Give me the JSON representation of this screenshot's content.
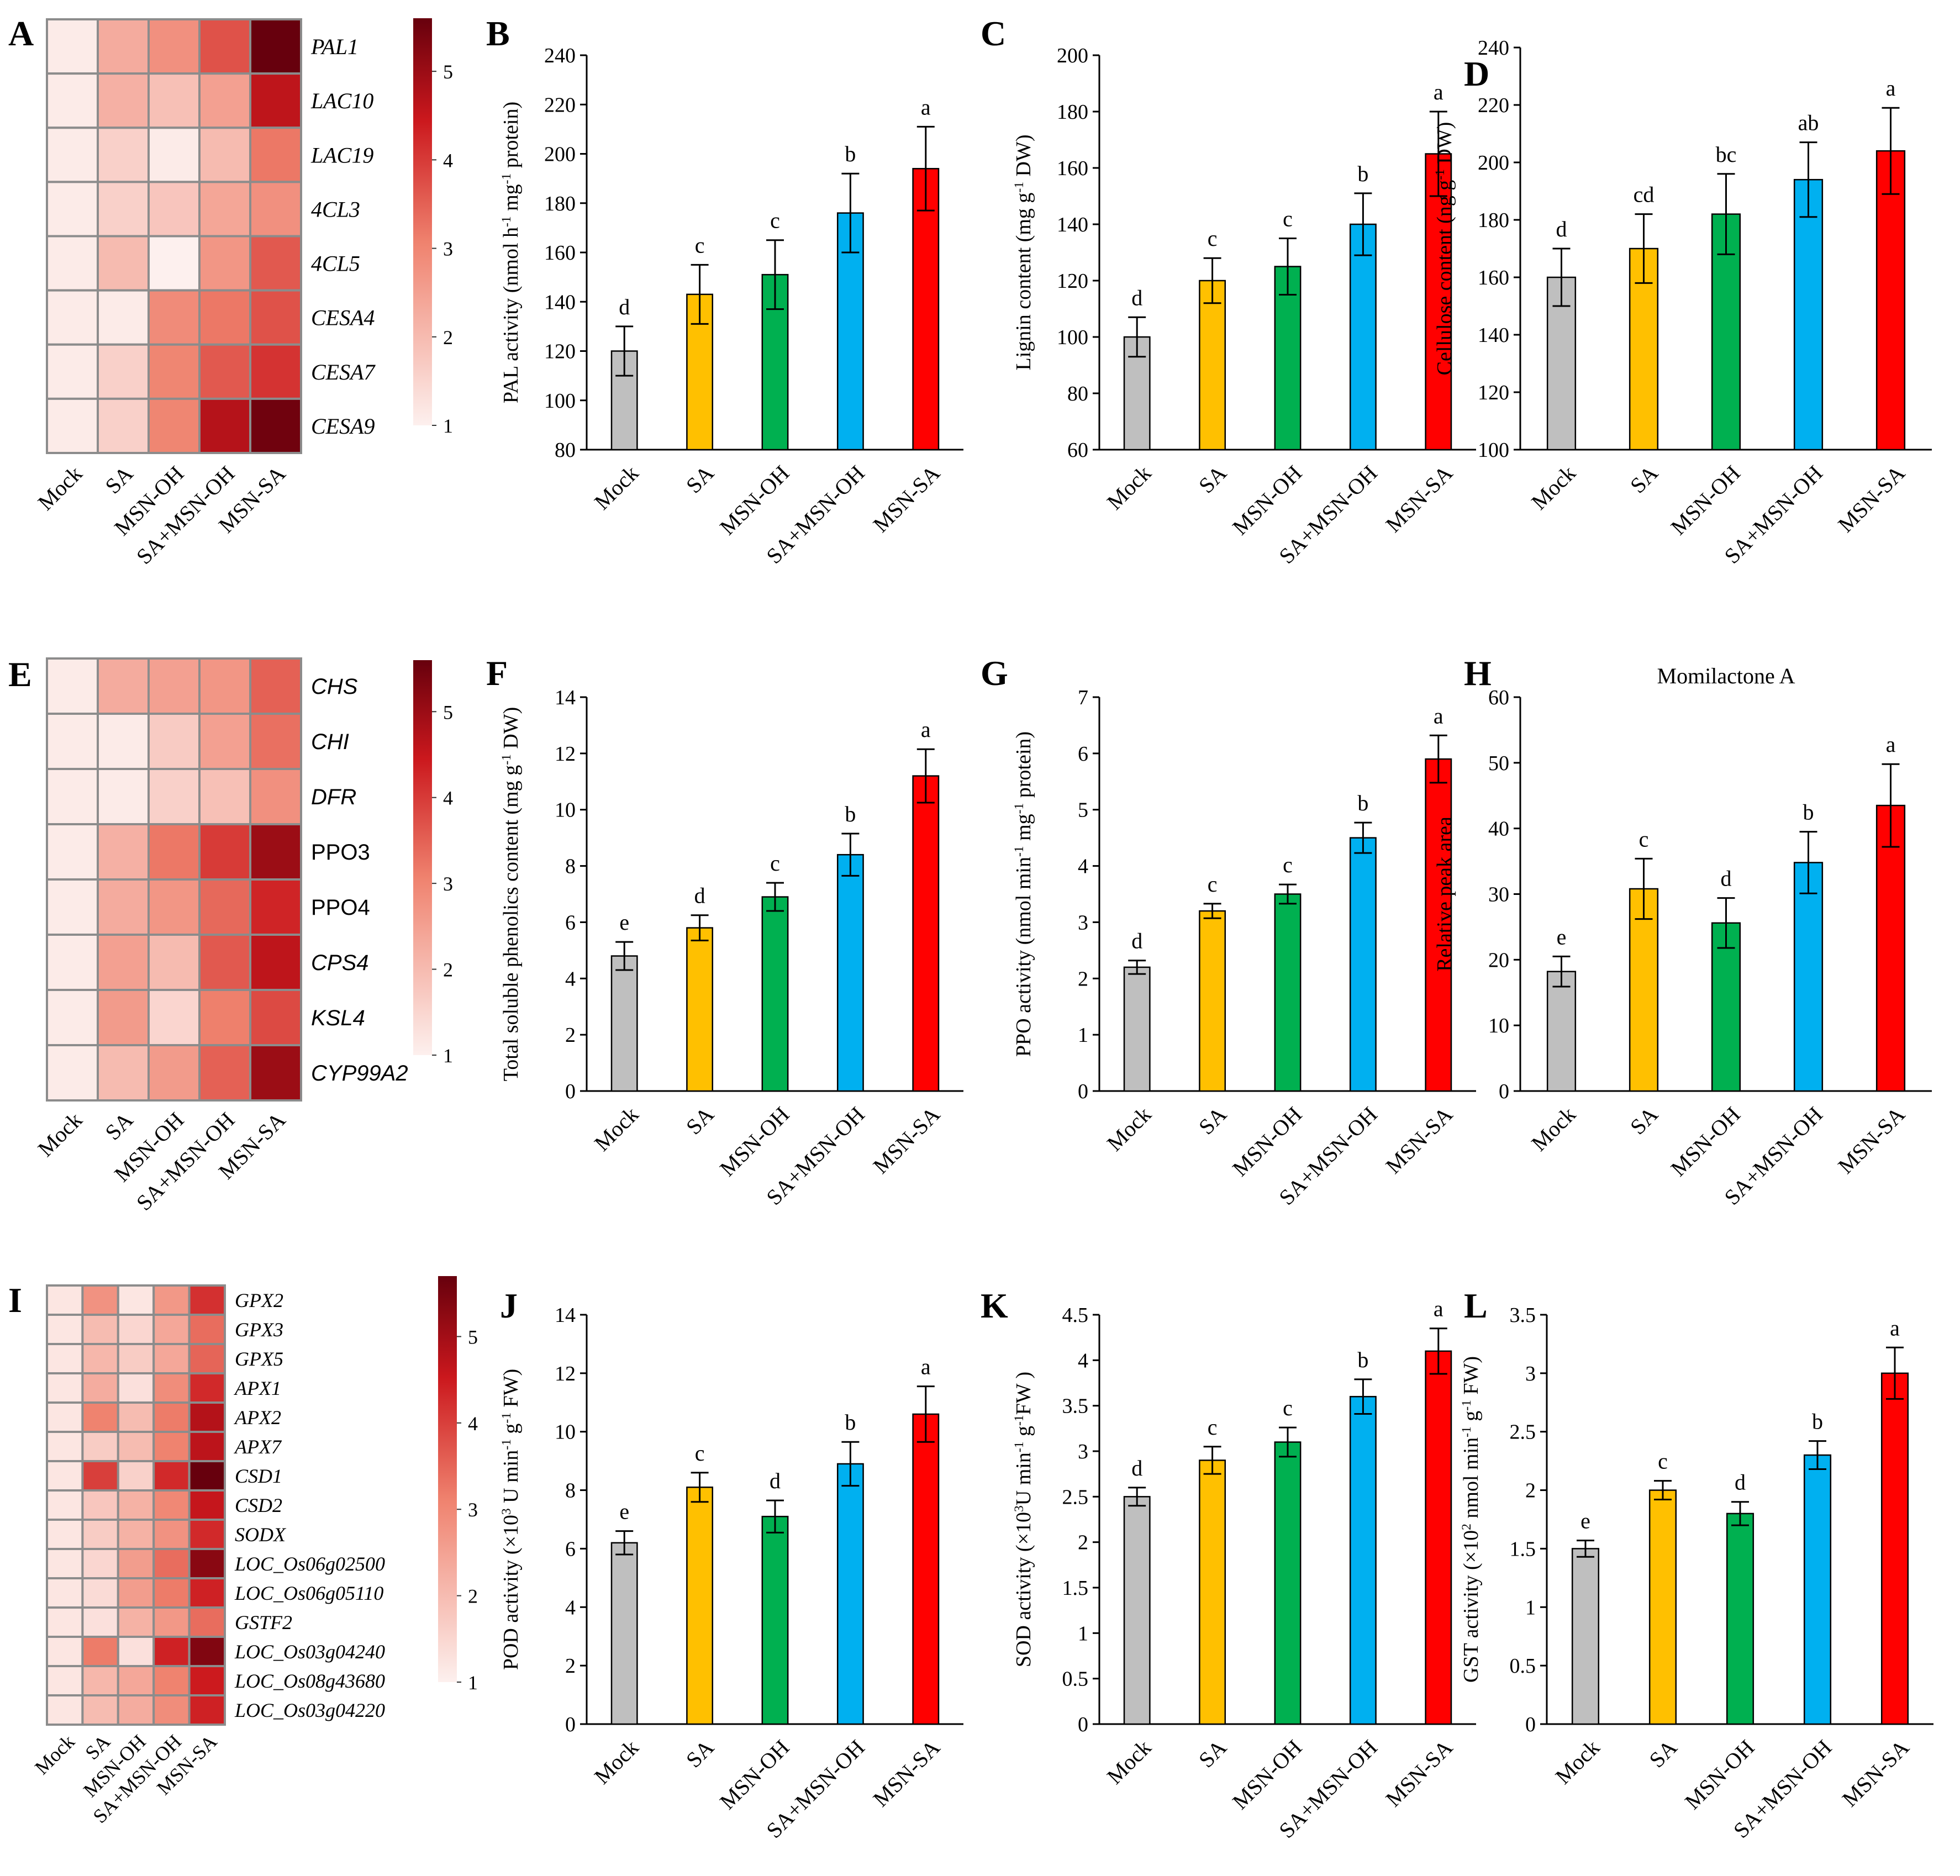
{
  "category_colors": {
    "Mock": "#bfbfbf",
    "SA": "#ffc000",
    "MSN-OH": "#00b050",
    "SA+MSN-OH": "#00b0f0",
    "MSN-SA": "#ff0000"
  },
  "heatmap_colors": {
    "low": "#fdf0ee",
    "high": "#67000d"
  },
  "chart_data": [
    {
      "panel": "A",
      "type": "heatmap",
      "columns": [
        "Mock",
        "SA",
        "MSN-OH",
        "SA+MSN-OH",
        "MSN-SA"
      ],
      "rows": [
        "PAL1",
        "LAC10",
        "LAC19",
        "4CL3",
        "4CL5",
        "CESA4",
        "CESA7",
        "CESA9"
      ],
      "row_italic": [
        true,
        true,
        true,
        true,
        true,
        true,
        true,
        true
      ],
      "values": [
        [
          1.1,
          2.3,
          2.8,
          3.7,
          5.6
        ],
        [
          1.1,
          2.2,
          1.9,
          2.5,
          4.6
        ],
        [
          1.1,
          1.6,
          1.1,
          2.0,
          3.2
        ],
        [
          1.1,
          1.6,
          1.8,
          2.4,
          2.8
        ],
        [
          1.1,
          2.0,
          1.0,
          2.7,
          3.6
        ],
        [
          1.1,
          1.1,
          2.9,
          3.2,
          3.7
        ],
        [
          1.1,
          1.6,
          3.0,
          3.6,
          4.1
        ],
        [
          1.1,
          1.6,
          3.0,
          4.7,
          5.5
        ]
      ],
      "colorbar": {
        "range": [
          1,
          5.6
        ],
        "ticks": [
          "1",
          "2",
          "3",
          "4",
          "5"
        ]
      }
    },
    {
      "panel": "B",
      "type": "bar",
      "categories": [
        "Mock",
        "SA",
        "MSN-OH",
        "SA+MSN-OH",
        "MSN-SA"
      ],
      "values": [
        120,
        143,
        151,
        176,
        194
      ],
      "errors": [
        10,
        12,
        14,
        16,
        17
      ],
      "letters": [
        "d",
        "c",
        "c",
        "b",
        "a"
      ],
      "ylim": [
        80,
        240
      ],
      "yticks": [
        "80",
        "100",
        "120",
        "140",
        "160",
        "180",
        "200",
        "220",
        "240"
      ],
      "ylabel_parts": [
        {
          "t": "PAL activity (nmol h"
        },
        {
          "t": "-1",
          "sup": true
        },
        {
          "t": " mg"
        },
        {
          "t": "-1",
          "sup": true
        },
        {
          "t": " protein)"
        }
      ],
      "title": ""
    },
    {
      "panel": "C",
      "type": "bar",
      "categories": [
        "Mock",
        "SA",
        "MSN-OH",
        "SA+MSN-OH",
        "MSN-SA"
      ],
      "values": [
        100,
        120,
        125,
        140,
        165
      ],
      "errors": [
        7,
        8,
        10,
        11,
        15
      ],
      "letters": [
        "d",
        "c",
        "c",
        "b",
        "a"
      ],
      "ylim": [
        60,
        200
      ],
      "yticks": [
        "60",
        "80",
        "100",
        "120",
        "140",
        "160",
        "180",
        "200"
      ],
      "ylabel_parts": [
        {
          "t": "Lignin content  (mg g"
        },
        {
          "t": "-1",
          "sup": true
        },
        {
          "t": " DW)"
        }
      ],
      "title": ""
    },
    {
      "panel": "D",
      "type": "bar",
      "categories": [
        "Mock",
        "SA",
        "MSN-OH",
        "SA+MSN-OH",
        "MSN-SA"
      ],
      "values": [
        160,
        170,
        182,
        194,
        204
      ],
      "errors": [
        10,
        12,
        14,
        13,
        15
      ],
      "letters": [
        "d",
        "cd",
        "bc",
        "ab",
        "a"
      ],
      "ylim": [
        100,
        240
      ],
      "yticks": [
        "100",
        "120",
        "140",
        "160",
        "180",
        "200",
        "220",
        "240"
      ],
      "ylabel_parts": [
        {
          "t": "Cellulose content (ng g"
        },
        {
          "t": "-1",
          "sup": true
        },
        {
          "t": " DW)"
        }
      ],
      "title": ""
    },
    {
      "panel": "E",
      "type": "heatmap",
      "columns": [
        "Mock",
        "SA",
        "MSN-OH",
        "SA+MSN-OH",
        "MSN-SA"
      ],
      "rows": [
        "CHS",
        "CHI",
        "DFR",
        "PPO3",
        "PPO4",
        "CPS4",
        "KSL4",
        "CYP99A2"
      ],
      "row_italic": [
        true,
        true,
        true,
        false,
        false,
        true,
        true,
        true
      ],
      "values": [
        [
          1.1,
          2.3,
          2.5,
          2.7,
          3.5
        ],
        [
          1.1,
          1.1,
          1.7,
          2.5,
          3.3
        ],
        [
          1.1,
          1.1,
          1.6,
          1.9,
          2.8
        ],
        [
          1.1,
          2.2,
          3.2,
          4.0,
          5.0
        ],
        [
          1.1,
          2.3,
          2.7,
          3.4,
          4.3
        ],
        [
          1.1,
          2.5,
          2.0,
          3.6,
          4.6
        ],
        [
          1.1,
          2.6,
          1.5,
          3.1,
          3.8
        ],
        [
          1.1,
          2.0,
          2.6,
          3.5,
          5.0
        ]
      ],
      "colorbar": {
        "range": [
          1,
          5.6
        ],
        "ticks": [
          "1",
          "2",
          "3",
          "4",
          "5"
        ]
      }
    },
    {
      "panel": "F",
      "type": "bar",
      "categories": [
        "Mock",
        "SA",
        "MSN-OH",
        "SA+MSN-OH",
        "MSN-SA"
      ],
      "values": [
        4.8,
        5.8,
        6.9,
        8.4,
        11.2
      ],
      "errors": [
        0.5,
        0.45,
        0.5,
        0.75,
        0.95
      ],
      "letters": [
        "e",
        "d",
        "c",
        "b",
        "a"
      ],
      "ylim": [
        0,
        14
      ],
      "yticks": [
        "0",
        "2",
        "4",
        "6",
        "8",
        "10",
        "12",
        "14"
      ],
      "ylabel_parts": [
        {
          "t": "Total soluble phenolics content (mg g"
        },
        {
          "t": "-1",
          "sup": true
        },
        {
          "t": " DW)"
        }
      ],
      "title": ""
    },
    {
      "panel": "G",
      "type": "bar",
      "categories": [
        "Mock",
        "SA",
        "MSN-OH",
        "SA+MSN-OH",
        "MSN-SA"
      ],
      "values": [
        2.2,
        3.2,
        3.5,
        4.5,
        5.9
      ],
      "errors": [
        0.12,
        0.13,
        0.17,
        0.27,
        0.42
      ],
      "letters": [
        "d",
        "c",
        "c",
        "b",
        "a"
      ],
      "ylim": [
        0,
        7
      ],
      "yticks": [
        "0",
        "1",
        "2",
        "3",
        "4",
        "5",
        "6",
        "7"
      ],
      "ylabel_parts": [
        {
          "t": "PPO activity (nmol  min"
        },
        {
          "t": "-1",
          "sup": true
        },
        {
          "t": " mg"
        },
        {
          "t": "-1",
          "sup": true
        },
        {
          "t": " protein)"
        }
      ],
      "title": ""
    },
    {
      "panel": "H",
      "type": "bar",
      "categories": [
        "Mock",
        "SA",
        "MSN-OH",
        "SA+MSN-OH",
        "MSN-SA"
      ],
      "values": [
        18.2,
        30.8,
        25.6,
        34.8,
        43.5
      ],
      "errors": [
        2.3,
        4.6,
        3.8,
        4.7,
        6.3
      ],
      "letters": [
        "e",
        "c",
        "d",
        "b",
        "a"
      ],
      "ylim": [
        0,
        60
      ],
      "yticks": [
        "0",
        "10",
        "20",
        "30",
        "40",
        "50",
        "60"
      ],
      "ylabel_parts": [
        {
          "t": "Relative peak area"
        }
      ],
      "title": "Momilactone A"
    },
    {
      "panel": "I",
      "type": "heatmap",
      "columns": [
        "Mock",
        "SA",
        "MSN-OH",
        "SA+MSN-OH",
        "MSN-SA"
      ],
      "rows": [
        "GPX2",
        "GPX3",
        "GPX5",
        "APX1",
        "APX2",
        "APX7",
        "CSD1",
        "CSD2",
        "SODX",
        "LOC_Os06g02500",
        "LOC_Os06g05110",
        "GSTF2",
        "LOC_Os03g04240",
        "LOC_Os08g43680",
        "LOC_Os03g04220"
      ],
      "row_italic": [
        true,
        true,
        true,
        true,
        true,
        true,
        true,
        true,
        true,
        true,
        true,
        true,
        true,
        true,
        true
      ],
      "values": [
        [
          1.2,
          2.8,
          1.2,
          2.7,
          4.2
        ],
        [
          1.2,
          2.0,
          1.5,
          2.4,
          3.4
        ],
        [
          1.2,
          2.1,
          1.7,
          2.4,
          3.5
        ],
        [
          1.2,
          2.3,
          1.3,
          2.9,
          4.3
        ],
        [
          1.2,
          3.1,
          2.0,
          3.2,
          4.8
        ],
        [
          1.2,
          1.7,
          2.0,
          3.1,
          4.7
        ],
        [
          1.2,
          4.0,
          1.6,
          4.3,
          5.7
        ],
        [
          1.2,
          1.8,
          2.2,
          3.0,
          4.6
        ],
        [
          1.2,
          1.7,
          2.2,
          2.8,
          4.3
        ],
        [
          1.2,
          1.5,
          2.6,
          3.4,
          5.3
        ],
        [
          1.2,
          1.4,
          2.6,
          3.2,
          4.4
        ],
        [
          1.2,
          1.3,
          2.2,
          2.7,
          3.4
        ],
        [
          1.2,
          3.2,
          1.3,
          4.4,
          5.4
        ],
        [
          1.2,
          2.1,
          2.4,
          3.1,
          4.5
        ],
        [
          1.2,
          2.0,
          2.3,
          2.9,
          4.4
        ]
      ],
      "colorbar": {
        "range": [
          1,
          5.7
        ],
        "ticks": [
          "1",
          "2",
          "3",
          "4",
          "5"
        ]
      }
    },
    {
      "panel": "J",
      "type": "bar",
      "categories": [
        "Mock",
        "SA",
        "MSN-OH",
        "SA+MSN-OH",
        "MSN-SA"
      ],
      "values": [
        6.2,
        8.1,
        7.1,
        8.9,
        10.6
      ],
      "errors": [
        0.4,
        0.5,
        0.55,
        0.75,
        0.95
      ],
      "letters": [
        "e",
        "c",
        "d",
        "b",
        "a"
      ],
      "ylim": [
        0,
        14
      ],
      "yticks": [
        "0",
        "2",
        "4",
        "6",
        "8",
        "10",
        "12",
        "14"
      ],
      "ylabel_parts": [
        {
          "t": "POD activity (×10"
        },
        {
          "t": "3",
          "sup": true
        },
        {
          "t": " U min"
        },
        {
          "t": "-1",
          "sup": true
        },
        {
          "t": " g"
        },
        {
          "t": "-1",
          "sup": true
        },
        {
          "t": " FW)"
        }
      ],
      "title": ""
    },
    {
      "panel": "K",
      "type": "bar",
      "categories": [
        "Mock",
        "SA",
        "MSN-OH",
        "SA+MSN-OH",
        "MSN-SA"
      ],
      "values": [
        2.5,
        2.9,
        3.1,
        3.6,
        4.1
      ],
      "errors": [
        0.1,
        0.15,
        0.16,
        0.19,
        0.25
      ],
      "letters": [
        "d",
        "c",
        "c",
        "b",
        "a"
      ],
      "ylim": [
        0,
        4.5
      ],
      "yticks": [
        "0",
        "0.5",
        "1",
        "1.5",
        "2",
        "2.5",
        "3",
        "3.5",
        "4",
        "4.5"
      ],
      "ylabel_parts": [
        {
          "t": "SOD activity (×10"
        },
        {
          "t": "3",
          "sup": true
        },
        {
          "t": "U min"
        },
        {
          "t": "-1",
          "sup": true
        },
        {
          "t": " g"
        },
        {
          "t": "-1",
          "sup": true
        },
        {
          "t": "FW )"
        }
      ],
      "title": ""
    },
    {
      "panel": "L",
      "type": "bar",
      "categories": [
        "Mock",
        "SA",
        "MSN-OH",
        "SA+MSN-OH",
        "MSN-SA"
      ],
      "values": [
        1.5,
        2.0,
        1.8,
        2.3,
        3.0
      ],
      "errors": [
        0.07,
        0.08,
        0.1,
        0.12,
        0.22
      ],
      "letters": [
        "e",
        "c",
        "d",
        "b",
        "a"
      ],
      "ylim": [
        0,
        3.5
      ],
      "yticks": [
        "0",
        "0.5",
        "1",
        "1.5",
        "2",
        "2.5",
        "3",
        "3.5"
      ],
      "ylabel_parts": [
        {
          "t": "GST activity (×10"
        },
        {
          "t": "2",
          "sup": true
        },
        {
          "t": " nmol min"
        },
        {
          "t": "-1",
          "sup": true
        },
        {
          "t": " g"
        },
        {
          "t": "-1",
          "sup": true
        },
        {
          "t": " FW)"
        }
      ],
      "title": ""
    }
  ]
}
